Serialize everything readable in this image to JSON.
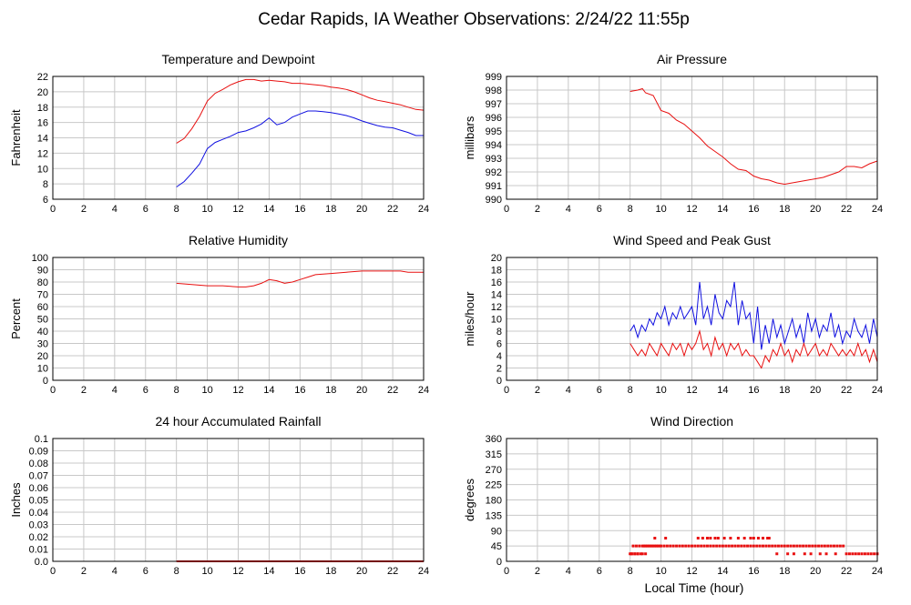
{
  "page_title": "Cedar Rapids, IA Weather Observations: 2/24/22 11:55p",
  "xaxis_label": "Local Time (hour)",
  "colors": {
    "red": "#e81010",
    "blue": "#1010e0"
  },
  "chart_data": [
    {
      "id": "temp",
      "type": "line",
      "title": "Temperature and Dewpoint",
      "ylabel": "Fahrenheit",
      "xlim": [
        0,
        24
      ],
      "ylim": [
        6,
        22
      ],
      "yticks": [
        6,
        8,
        10,
        12,
        14,
        16,
        18,
        20,
        22
      ],
      "xticks": [
        0,
        2,
        4,
        6,
        8,
        10,
        12,
        14,
        16,
        18,
        20,
        22,
        24
      ],
      "grid": true,
      "series": [
        {
          "color": "#e81010",
          "x": [
            8,
            8.5,
            9,
            9.5,
            10,
            10.5,
            11,
            11.5,
            12,
            12.5,
            13,
            13.5,
            14,
            14.5,
            15,
            15.5,
            16,
            16.5,
            17,
            17.5,
            18,
            18.5,
            19,
            19.5,
            20,
            20.5,
            21,
            21.5,
            22,
            22.5,
            23,
            23.5,
            24
          ],
          "y": [
            13.3,
            13.9,
            15.2,
            16.8,
            18.8,
            19.8,
            20.3,
            20.9,
            21.3,
            21.6,
            21.6,
            21.4,
            21.5,
            21.4,
            21.3,
            21.1,
            21.1,
            21.0,
            20.9,
            20.8,
            20.6,
            20.5,
            20.3,
            20.0,
            19.6,
            19.2,
            18.9,
            18.7,
            18.5,
            18.3,
            18.0,
            17.7,
            17.6
          ]
        },
        {
          "color": "#1010e0",
          "x": [
            8,
            8.5,
            9,
            9.5,
            10,
            10.5,
            11,
            11.5,
            12,
            12.5,
            13,
            13.5,
            14,
            14.5,
            15,
            15.5,
            16,
            16.5,
            17,
            17.5,
            18,
            18.5,
            19,
            19.5,
            20,
            20.5,
            21,
            21.5,
            22,
            22.5,
            23,
            23.5,
            24
          ],
          "y": [
            7.6,
            8.3,
            9.4,
            10.6,
            12.6,
            13.4,
            13.8,
            14.2,
            14.7,
            14.9,
            15.3,
            15.8,
            16.6,
            15.7,
            16.0,
            16.7,
            17.1,
            17.5,
            17.5,
            17.4,
            17.3,
            17.1,
            16.9,
            16.6,
            16.2,
            15.9,
            15.6,
            15.4,
            15.3,
            15.0,
            14.7,
            14.3,
            14.3
          ]
        }
      ]
    },
    {
      "id": "pressure",
      "type": "line",
      "title": "Air Pressure",
      "ylabel": "millibars",
      "xlim": [
        0,
        24
      ],
      "ylim": [
        990,
        999
      ],
      "yticks": [
        990,
        991,
        992,
        993,
        994,
        995,
        996,
        997,
        998,
        999
      ],
      "xticks": [
        0,
        2,
        4,
        6,
        8,
        10,
        12,
        14,
        16,
        18,
        20,
        22,
        24
      ],
      "grid": true,
      "series": [
        {
          "color": "#e81010",
          "x": [
            8,
            8.5,
            8.8,
            9,
            9.5,
            10,
            10.5,
            11,
            11.5,
            12,
            12.5,
            13,
            13.5,
            14,
            14.5,
            15,
            15.5,
            16,
            16.5,
            17,
            17.5,
            18,
            18.5,
            19,
            19.5,
            20,
            20.5,
            21,
            21.5,
            22,
            22.5,
            23,
            23.5,
            24
          ],
          "y": [
            997.9,
            998.0,
            998.1,
            997.8,
            997.6,
            996.5,
            996.3,
            995.8,
            995.5,
            995.0,
            994.5,
            993.9,
            993.5,
            993.1,
            992.6,
            992.2,
            992.1,
            991.7,
            991.5,
            991.4,
            991.2,
            991.1,
            991.2,
            991.3,
            991.4,
            991.5,
            991.6,
            991.8,
            992.0,
            992.4,
            992.4,
            992.3,
            992.6,
            992.8
          ]
        }
      ]
    },
    {
      "id": "rh",
      "type": "line",
      "title": "Relative Humidity",
      "ylabel": "Percent",
      "xlim": [
        0,
        24
      ],
      "ylim": [
        0,
        100
      ],
      "yticks": [
        0,
        10,
        20,
        30,
        40,
        50,
        60,
        70,
        80,
        90,
        100
      ],
      "xticks": [
        0,
        2,
        4,
        6,
        8,
        10,
        12,
        14,
        16,
        18,
        20,
        22,
        24
      ],
      "grid": true,
      "series": [
        {
          "color": "#e81010",
          "x": [
            8,
            9,
            10,
            11,
            12,
            12.5,
            13,
            13.5,
            14,
            14.5,
            15,
            15.5,
            16,
            16.5,
            17,
            18,
            19,
            20,
            21,
            22,
            22.5,
            23,
            24
          ],
          "y": [
            79,
            78,
            77,
            77,
            76,
            76,
            77,
            79,
            82,
            81,
            79,
            80,
            82,
            84,
            86,
            87,
            88,
            89,
            89,
            89,
            89,
            88,
            88
          ]
        }
      ]
    },
    {
      "id": "wind",
      "type": "line",
      "title": "Wind Speed and Peak Gust",
      "ylabel": "miles/hour",
      "xlim": [
        0,
        24
      ],
      "ylim": [
        0,
        20
      ],
      "yticks": [
        0,
        2,
        4,
        6,
        8,
        10,
        12,
        14,
        16,
        18,
        20
      ],
      "xticks": [
        0,
        2,
        4,
        6,
        8,
        10,
        12,
        14,
        16,
        18,
        20,
        22,
        24
      ],
      "grid": true,
      "series": [
        {
          "color": "#1010e0",
          "x": [
            8,
            8.25,
            8.5,
            8.75,
            9,
            9.25,
            9.5,
            9.75,
            10,
            10.25,
            10.5,
            10.75,
            11,
            11.25,
            11.5,
            11.75,
            12,
            12.25,
            12.5,
            12.75,
            13,
            13.25,
            13.5,
            13.75,
            14,
            14.25,
            14.5,
            14.75,
            15,
            15.25,
            15.5,
            15.75,
            16,
            16.25,
            16.5,
            16.75,
            17,
            17.25,
            17.5,
            17.75,
            18,
            18.25,
            18.5,
            18.75,
            19,
            19.25,
            19.5,
            19.75,
            20,
            20.25,
            20.5,
            20.75,
            21,
            21.25,
            21.5,
            21.75,
            22,
            22.25,
            22.5,
            22.75,
            23,
            23.25,
            23.5,
            23.75,
            24
          ],
          "y": [
            8,
            9,
            7,
            9,
            8,
            10,
            9,
            11,
            10,
            12,
            9,
            11,
            10,
            12,
            10,
            11,
            12,
            9,
            16,
            10,
            12,
            9,
            14,
            11,
            10,
            13,
            12,
            16,
            9,
            13,
            10,
            11,
            6,
            12,
            5,
            9,
            6,
            10,
            7,
            9,
            6,
            8,
            10,
            7,
            9,
            6,
            11,
            8,
            10,
            7,
            9,
            8,
            11,
            7,
            9,
            6,
            8,
            7,
            10,
            8,
            7,
            9,
            6,
            10,
            7
          ]
        },
        {
          "color": "#e81010",
          "x": [
            8,
            8.25,
            8.5,
            8.75,
            9,
            9.25,
            9.5,
            9.75,
            10,
            10.25,
            10.5,
            10.75,
            11,
            11.25,
            11.5,
            11.75,
            12,
            12.25,
            12.5,
            12.75,
            13,
            13.25,
            13.5,
            13.75,
            14,
            14.25,
            14.5,
            14.75,
            15,
            15.25,
            15.5,
            15.75,
            16,
            16.25,
            16.5,
            16.75,
            17,
            17.25,
            17.5,
            17.75,
            18,
            18.25,
            18.5,
            18.75,
            19,
            19.25,
            19.5,
            19.75,
            20,
            20.25,
            20.5,
            20.75,
            21,
            21.25,
            21.5,
            21.75,
            22,
            22.25,
            22.5,
            22.75,
            23,
            23.25,
            23.5,
            23.75,
            24
          ],
          "y": [
            6,
            5,
            4,
            5,
            4,
            6,
            5,
            4,
            6,
            5,
            4,
            6,
            5,
            6,
            4,
            6,
            5,
            6,
            8,
            5,
            6,
            4,
            7,
            5,
            6,
            4,
            6,
            5,
            6,
            4,
            5,
            4,
            4,
            3,
            2,
            4,
            3,
            5,
            4,
            6,
            4,
            5,
            3,
            5,
            4,
            6,
            4,
            5,
            6,
            4,
            5,
            4,
            6,
            5,
            4,
            5,
            4,
            5,
            4,
            6,
            4,
            5,
            3,
            5,
            3
          ]
        }
      ]
    },
    {
      "id": "rain",
      "type": "line",
      "title": "24 hour Accumulated Rainfall",
      "ylabel": "Inches",
      "xlim": [
        0,
        24
      ],
      "ylim": [
        0,
        0.1
      ],
      "yticks": [
        0.0,
        0.01,
        0.02,
        0.03,
        0.04,
        0.05,
        0.06,
        0.07,
        0.08,
        0.09,
        0.1
      ],
      "ytick_labels": [
        "0.0",
        "0.01",
        "0.02",
        "0.03",
        "0.04",
        "0.05",
        "0.06",
        "0.07",
        "0.08",
        "0.09",
        "0.1"
      ],
      "xticks": [
        0,
        2,
        4,
        6,
        8,
        10,
        12,
        14,
        16,
        18,
        20,
        22,
        24
      ],
      "grid": true,
      "series": [
        {
          "color": "#e81010",
          "x": [
            8,
            24
          ],
          "y": [
            0,
            0
          ]
        }
      ]
    },
    {
      "id": "winddir",
      "type": "scatter",
      "title": "Wind Direction",
      "ylabel": "degrees",
      "xlim": [
        0,
        24
      ],
      "ylim": [
        0,
        360
      ],
      "yticks": [
        0,
        45,
        90,
        135,
        180,
        225,
        270,
        315,
        360
      ],
      "xticks": [
        0,
        2,
        4,
        6,
        8,
        10,
        12,
        14,
        16,
        18,
        20,
        22,
        24
      ],
      "grid": true,
      "series": [
        {
          "color": "#e81010",
          "x": [
            8.0,
            8.1,
            8.2,
            8.3,
            8.4,
            8.5,
            8.6,
            8.7,
            8.8,
            8.9,
            9.0,
            9.1,
            9.2,
            9.3,
            9.4,
            9.5,
            9.6,
            9.7,
            9.8,
            9.9,
            10.0,
            10.2,
            10.4,
            10.6,
            10.8,
            11.0,
            11.2,
            11.4,
            11.6,
            11.8,
            12.0,
            12.2,
            12.4,
            12.6,
            12.8,
            13.0,
            13.2,
            13.4,
            13.6,
            13.8,
            14.0,
            14.2,
            14.4,
            14.6,
            14.8,
            15.0,
            15.2,
            15.4,
            15.6,
            15.8,
            16.0,
            16.2,
            16.4,
            16.6,
            16.8,
            17.0,
            17.2,
            17.4,
            17.6,
            17.8,
            18.0,
            18.2,
            18.4,
            18.6,
            18.8,
            19.0,
            19.2,
            19.4,
            19.6,
            19.8,
            20.0,
            20.2,
            20.4,
            20.6,
            20.8,
            21.0,
            21.2,
            21.4,
            21.6,
            21.8,
            22.0,
            22.2,
            22.4,
            22.6,
            22.8,
            23.0,
            23.2,
            23.4,
            23.6,
            23.8,
            24.0,
            9.6,
            10.3,
            12.4,
            12.7,
            13.0,
            13.2,
            13.5,
            13.7,
            14.1,
            14.5,
            15.0,
            15.4,
            15.8,
            16.0,
            16.3,
            16.6,
            16.9,
            17.0,
            8.1,
            8.3,
            8.5,
            8.8,
            9.0,
            17.5,
            18.2,
            18.6,
            19.3,
            19.7,
            20.3,
            20.7,
            21.3
          ],
          "y": [
            22,
            22,
            45,
            22,
            45,
            22,
            45,
            22,
            45,
            45,
            45,
            45,
            45,
            45,
            45,
            45,
            45,
            45,
            45,
            45,
            45,
            45,
            45,
            45,
            45,
            45,
            45,
            45,
            45,
            45,
            45,
            45,
            45,
            45,
            45,
            45,
            45,
            45,
            45,
            45,
            45,
            45,
            45,
            45,
            45,
            45,
            45,
            45,
            45,
            45,
            45,
            45,
            45,
            45,
            45,
            45,
            45,
            45,
            45,
            45,
            45,
            45,
            45,
            45,
            45,
            45,
            45,
            45,
            45,
            45,
            45,
            45,
            45,
            45,
            45,
            45,
            45,
            45,
            45,
            45,
            22,
            22,
            22,
            22,
            22,
            22,
            22,
            22,
            22,
            22,
            22,
            68,
            68,
            68,
            68,
            68,
            68,
            68,
            68,
            68,
            68,
            68,
            68,
            68,
            68,
            68,
            68,
            68,
            68,
            22,
            22,
            22,
            22,
            22,
            22,
            22,
            22,
            22,
            22,
            22,
            22,
            22
          ]
        }
      ]
    }
  ]
}
